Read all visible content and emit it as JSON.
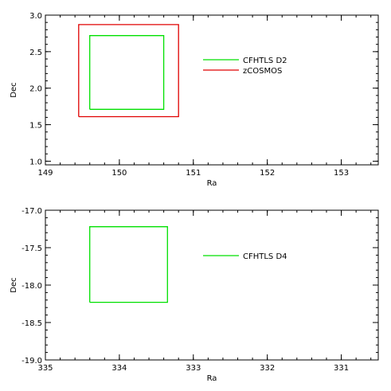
{
  "chart_data": [
    {
      "type": "line",
      "title": "",
      "xlabel": "Ra",
      "ylabel": "Dec",
      "xlim": [
        149,
        153.5
      ],
      "ylim": [
        0.95,
        3.0
      ],
      "x_ticks": [
        149,
        150,
        151,
        152,
        153
      ],
      "x_tick_labels": [
        "149",
        "150",
        "151",
        "152",
        "153"
      ],
      "y_ticks": [
        1.0,
        1.5,
        2.0,
        2.5,
        3.0
      ],
      "y_tick_labels": [
        "1.0",
        "1.5",
        "2.0",
        "2.5",
        "3.0"
      ],
      "legend_position": "upper-right",
      "series": [
        {
          "name": "CFHTLS D2",
          "color": "#00e000",
          "x": [
            149.6,
            150.6,
            150.6,
            149.6,
            149.6
          ],
          "y": [
            1.71,
            1.71,
            2.72,
            2.72,
            1.71
          ]
        },
        {
          "name": "zCOSMOS",
          "color": "#e00000",
          "x": [
            149.45,
            150.8,
            150.8,
            149.45,
            149.45
          ],
          "y": [
            1.61,
            1.61,
            2.87,
            2.87,
            1.61
          ]
        }
      ]
    },
    {
      "type": "line",
      "title": "",
      "xlabel": "Ra",
      "ylabel": "Dec",
      "xlim": [
        335,
        330.5
      ],
      "ylim": [
        -19.0,
        -17.0
      ],
      "x_ticks": [
        335,
        334,
        333,
        332,
        331
      ],
      "x_tick_labels": [
        "335",
        "334",
        "333",
        "332",
        "331"
      ],
      "y_ticks": [
        -19.0,
        -18.5,
        -18.0,
        -17.5,
        -17.0
      ],
      "y_tick_labels": [
        "-19.0",
        "-18.5",
        "-18.0",
        "-17.5",
        "-17.0"
      ],
      "legend_position": "upper-right",
      "series": [
        {
          "name": "CFHTLS D4",
          "color": "#00e000",
          "x": [
            334.4,
            333.35,
            333.35,
            334.4,
            334.4
          ],
          "y": [
            -18.23,
            -18.23,
            -17.22,
            -17.22,
            -18.23
          ]
        }
      ]
    }
  ]
}
